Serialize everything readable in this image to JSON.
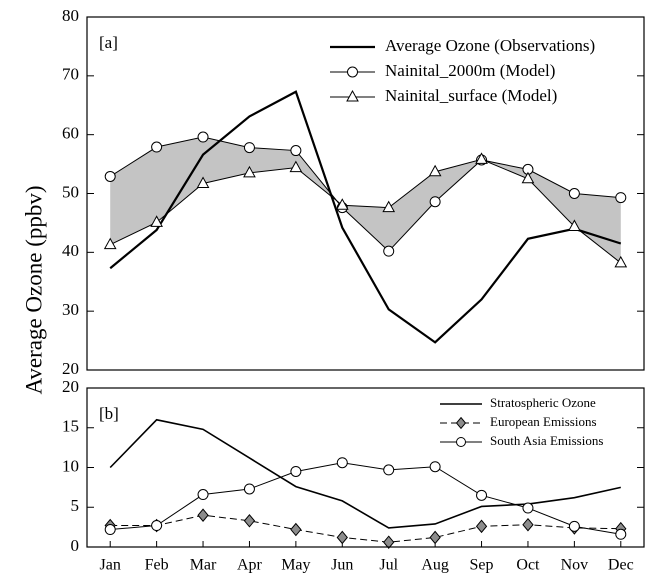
{
  "chart_data": [
    {
      "type": "line",
      "panel_label": "[a]",
      "ylabel": "Average Ozone (ppbv)",
      "ylim": [
        20,
        80
      ],
      "yticks": [
        20,
        30,
        40,
        50,
        60,
        70,
        80
      ],
      "legend": "upper right",
      "fill_between": [
        1,
        2
      ],
      "fill_color": "#c4c4c4",
      "series": [
        {
          "name": "Average Ozone (Observations)",
          "color": "#000000",
          "marker": "none",
          "dash": false,
          "width": 2.2,
          "values": [
            37.3,
            43.8,
            56.6,
            63.1,
            67.3,
            44.2,
            30.3,
            24.7,
            32.0,
            42.3,
            44.0,
            41.5
          ]
        },
        {
          "name": "Nainital_2000m (Model)",
          "color": "#000000",
          "marker": "circle",
          "marker_fill": "#ffffff",
          "dash": false,
          "width": 1,
          "values": [
            52.9,
            57.9,
            59.6,
            57.8,
            57.3,
            47.6,
            40.2,
            48.6,
            55.7,
            54.1,
            50.0,
            49.3
          ]
        },
        {
          "name": "Nainital_surface (Model)",
          "color": "#000000",
          "marker": "triangle",
          "marker_fill": "#ffffff",
          "dash": false,
          "width": 1,
          "values": [
            41.3,
            45.1,
            51.7,
            53.5,
            54.4,
            48.0,
            47.6,
            53.7,
            55.8,
            52.5,
            44.4,
            38.2
          ]
        }
      ]
    },
    {
      "type": "line",
      "panel_label": "[b]",
      "categories": [
        "Jan",
        "Feb",
        "Mar",
        "Apr",
        "May",
        "Jun",
        "Jul",
        "Aug",
        "Sep",
        "Oct",
        "Nov",
        "Dec"
      ],
      "ylim": [
        0,
        20
      ],
      "yticks": [
        0,
        5,
        10,
        15,
        20
      ],
      "legend": "upper right",
      "series": [
        {
          "name": "Stratospheric Ozone",
          "color": "#000000",
          "marker": "none",
          "dash": false,
          "width": 1.6,
          "values": [
            10.0,
            16.0,
            14.8,
            11.2,
            7.6,
            5.8,
            2.4,
            2.9,
            5.1,
            5.4,
            6.2,
            7.5
          ]
        },
        {
          "name": "European Emissions",
          "color": "#000000",
          "marker": "diamond",
          "marker_fill": "#8c8c8c",
          "dash": true,
          "width": 1,
          "values": [
            2.7,
            2.7,
            4.0,
            3.3,
            2.2,
            1.2,
            0.6,
            1.2,
            2.6,
            2.8,
            2.4,
            2.3
          ]
        },
        {
          "name": "South Asia Emissions",
          "color": "#000000",
          "marker": "circle",
          "marker_fill": "#ffffff",
          "dash": false,
          "width": 1,
          "values": [
            2.2,
            2.7,
            6.6,
            7.3,
            9.5,
            10.6,
            9.7,
            10.1,
            6.5,
            4.9,
            2.6,
            1.6
          ]
        }
      ]
    }
  ]
}
